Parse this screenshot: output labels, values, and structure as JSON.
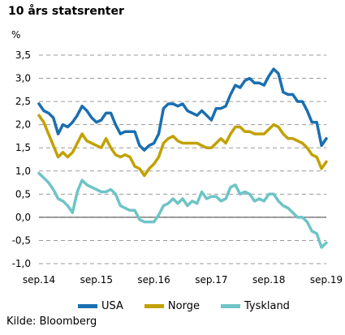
{
  "title": "10 års statsrenter",
  "ylabel": "%",
  "source": "Kilde: Bloomberg",
  "chart_data": {
    "type": "line",
    "title": "10 års statsrenter",
    "ylabel": "%",
    "ylim": [
      -1.0,
      3.5
    ],
    "y_ticks": [
      "3,5",
      "3,0",
      "2,5",
      "2,0",
      "1,5",
      "1,0",
      "0,5",
      "0,0",
      "-0,5",
      "-1,0"
    ],
    "y_tick_values": [
      3.5,
      3.0,
      2.5,
      2.0,
      1.5,
      1.0,
      0.5,
      0.0,
      -0.5,
      -1.0
    ],
    "x_ticks": [
      "sep.14",
      "sep.15",
      "sep.16",
      "sep.17",
      "sep.18",
      "sep.19"
    ],
    "grid": "horizontal dashed",
    "legend_position": "bottom",
    "x": [
      "2014-09",
      "2014-10",
      "2014-11",
      "2014-12",
      "2015-01",
      "2015-02",
      "2015-03",
      "2015-04",
      "2015-05",
      "2015-06",
      "2015-07",
      "2015-08",
      "2015-09",
      "2015-10",
      "2015-11",
      "2015-12",
      "2016-01",
      "2016-02",
      "2016-03",
      "2016-04",
      "2016-05",
      "2016-06",
      "2016-07",
      "2016-08",
      "2016-09",
      "2016-10",
      "2016-11",
      "2016-12",
      "2017-01",
      "2017-02",
      "2017-03",
      "2017-04",
      "2017-05",
      "2017-06",
      "2017-07",
      "2017-08",
      "2017-09",
      "2017-10",
      "2017-11",
      "2017-12",
      "2018-01",
      "2018-02",
      "2018-03",
      "2018-04",
      "2018-05",
      "2018-06",
      "2018-07",
      "2018-08",
      "2018-09",
      "2018-10",
      "2018-11",
      "2018-12",
      "2019-01",
      "2019-02",
      "2019-03",
      "2019-04",
      "2019-05",
      "2019-06",
      "2019-07",
      "2019-08",
      "2019-09"
    ],
    "series": [
      {
        "name": "USA",
        "color": "#1a6fb0",
        "values": [
          2.45,
          2.3,
          2.25,
          2.15,
          1.8,
          2.0,
          1.95,
          2.05,
          2.2,
          2.4,
          2.3,
          2.15,
          2.05,
          2.1,
          2.25,
          2.25,
          2.0,
          1.8,
          1.85,
          1.85,
          1.85,
          1.55,
          1.45,
          1.55,
          1.6,
          1.8,
          2.35,
          2.45,
          2.45,
          2.4,
          2.45,
          2.3,
          2.25,
          2.2,
          2.3,
          2.2,
          2.1,
          2.35,
          2.35,
          2.4,
          2.65,
          2.85,
          2.8,
          2.95,
          3.0,
          2.9,
          2.9,
          2.85,
          3.05,
          3.2,
          3.1,
          2.7,
          2.65,
          2.65,
          2.5,
          2.5,
          2.3,
          2.05,
          2.05,
          1.55,
          1.7
        ]
      },
      {
        "name": "Norge",
        "color": "#c2a100",
        "values": [
          2.2,
          2.05,
          1.8,
          1.55,
          1.3,
          1.4,
          1.3,
          1.4,
          1.6,
          1.8,
          1.65,
          1.6,
          1.55,
          1.5,
          1.7,
          1.5,
          1.35,
          1.3,
          1.35,
          1.3,
          1.1,
          1.05,
          0.9,
          1.05,
          1.15,
          1.3,
          1.6,
          1.7,
          1.75,
          1.65,
          1.6,
          1.6,
          1.6,
          1.6,
          1.55,
          1.5,
          1.5,
          1.6,
          1.7,
          1.6,
          1.8,
          1.95,
          1.95,
          1.85,
          1.85,
          1.8,
          1.8,
          1.8,
          1.9,
          2.0,
          1.95,
          1.8,
          1.7,
          1.7,
          1.65,
          1.6,
          1.5,
          1.35,
          1.3,
          1.05,
          1.2
        ]
      },
      {
        "name": "Tyskland",
        "color": "#6ec4c6",
        "values": [
          0.95,
          0.85,
          0.75,
          0.6,
          0.4,
          0.35,
          0.25,
          0.1,
          0.55,
          0.8,
          0.7,
          0.65,
          0.6,
          0.55,
          0.55,
          0.6,
          0.5,
          0.25,
          0.2,
          0.15,
          0.15,
          -0.05,
          -0.1,
          -0.1,
          -0.1,
          0.05,
          0.25,
          0.3,
          0.4,
          0.3,
          0.4,
          0.25,
          0.35,
          0.3,
          0.55,
          0.4,
          0.45,
          0.45,
          0.35,
          0.4,
          0.65,
          0.7,
          0.5,
          0.55,
          0.5,
          0.35,
          0.4,
          0.35,
          0.5,
          0.5,
          0.35,
          0.25,
          0.2,
          0.1,
          0.0,
          0.0,
          -0.1,
          -0.3,
          -0.35,
          -0.65,
          -0.55
        ]
      }
    ]
  }
}
